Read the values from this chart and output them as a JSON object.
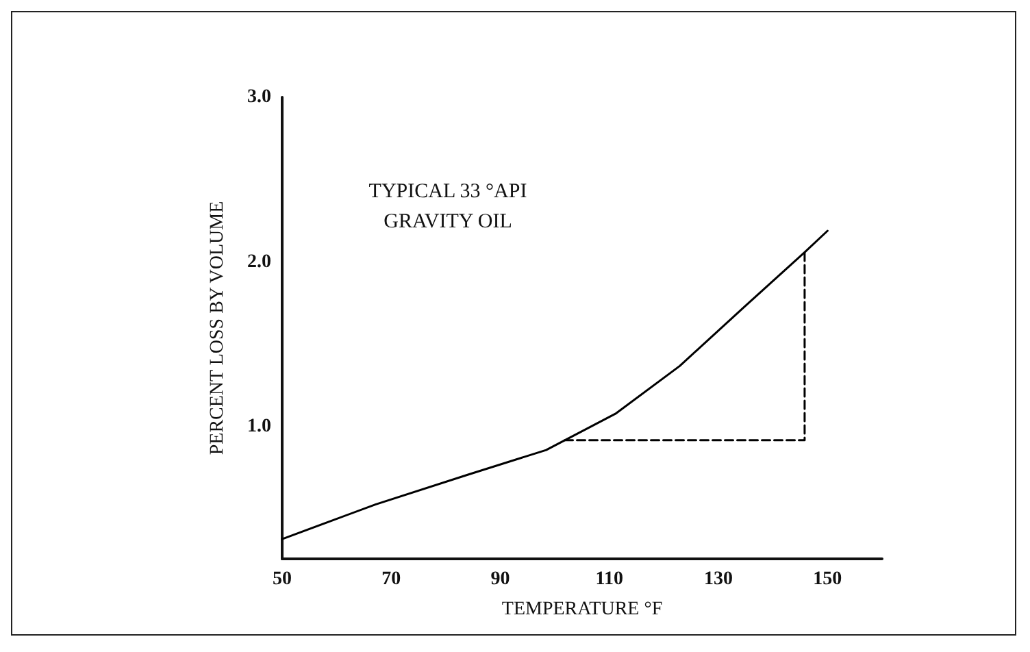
{
  "chart_data": {
    "type": "line",
    "xlabel": "TEMPERATURE °F",
    "ylabel": "PERCENT LOSS BY VOLUME",
    "annotations": [
      "TYPICAL 33 °API\nGRAVITY OIL"
    ],
    "xlim": [
      50,
      160
    ],
    "xticks": [
      50,
      70,
      90,
      110,
      130,
      150
    ],
    "ylim": [
      0.2,
      3.0
    ],
    "yticks": [
      {
        "value": 1,
        "label": "1.0"
      },
      {
        "value": 2,
        "label": "2.0"
      },
      {
        "value": 3,
        "label": "3.0"
      }
    ],
    "grid": false,
    "marker": "none",
    "series": [
      {
        "color": "#000000",
        "line_style": "solid",
        "x": [
          50,
          67.1,
          84,
          98.4,
          111.1,
          122.9,
          134.8,
          145.8,
          150
        ],
        "values": [
          0.32,
          0.53,
          0.71,
          0.86,
          1.08,
          1.37,
          1.73,
          2.06,
          2.19
        ]
      },
      {
        "color": "#000000",
        "line_style": "dashed",
        "x": [
          101.8,
          145.8,
          145.8
        ],
        "values": [
          0.92,
          0.92,
          2.06
        ]
      }
    ]
  }
}
